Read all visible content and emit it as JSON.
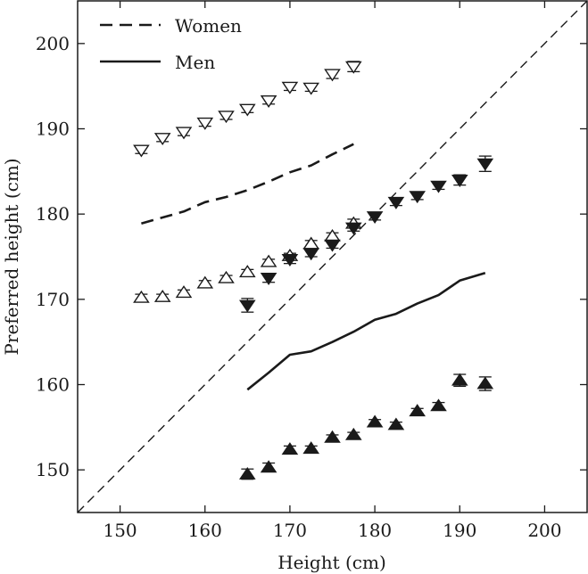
{
  "chart_data": {
    "type": "scatter",
    "title": "",
    "xlabel": "Height (cm)",
    "ylabel": "Preferred height (cm)",
    "xlim": [
      145,
      205
    ],
    "ylim": [
      145,
      205
    ],
    "xticks": [
      150,
      160,
      170,
      180,
      190,
      200
    ],
    "yticks": [
      150,
      160,
      170,
      180,
      190,
      200
    ],
    "grid": false,
    "legend_position": "top-left",
    "legend": [
      {
        "label": "Women",
        "style": "dashed"
      },
      {
        "label": "Men",
        "style": "solid"
      }
    ],
    "reference_line": {
      "name": "identity (y = x)",
      "style": "dashed",
      "from": [
        145,
        145
      ],
      "to": [
        205,
        205
      ]
    },
    "lines": [
      {
        "name": "Women",
        "style": "dashed",
        "x": [
          152.5,
          155,
          157.5,
          160,
          162.5,
          165,
          167.5,
          170,
          172.5,
          175,
          177.5
        ],
        "y": [
          178.9,
          179.6,
          180.3,
          181.4,
          182.0,
          182.8,
          183.8,
          184.9,
          185.7,
          187.0,
          188.2
        ]
      },
      {
        "name": "Men",
        "style": "solid",
        "x": [
          165,
          167.5,
          170,
          172.5,
          175,
          177.5,
          180,
          182.5,
          185,
          187.5,
          190,
          193
        ],
        "y": [
          159.4,
          161.4,
          163.5,
          163.9,
          165.0,
          166.2,
          167.6,
          168.3,
          169.5,
          170.5,
          172.2,
          173.1
        ]
      }
    ],
    "series": [
      {
        "name": "Women – preferred partner height",
        "marker": "open-triangle-down",
        "x": [
          152.5,
          155,
          157.5,
          160,
          162.5,
          165,
          167.5,
          170,
          172.5,
          175,
          177.5
        ],
        "y": [
          187.5,
          188.9,
          189.6,
          190.7,
          191.5,
          192.3,
          193.3,
          194.9,
          194.8,
          196.4,
          197.3
        ],
        "err": [
          0.4,
          0.4,
          0.4,
          0.4,
          0.4,
          0.4,
          0.4,
          0.4,
          0.4,
          0.5,
          0.6
        ]
      },
      {
        "name": "Women – preferred own height",
        "marker": "open-triangle-up",
        "x": [
          152.5,
          155,
          157.5,
          160,
          162.5,
          165,
          167.5,
          170,
          172.5,
          175,
          177.5
        ],
        "y": [
          170.2,
          170.3,
          170.8,
          171.9,
          172.5,
          173.2,
          174.4,
          175.1,
          176.5,
          177.4,
          178.9
        ],
        "err": [
          0.4,
          0.3,
          0.3,
          0.3,
          0.3,
          0.3,
          0.3,
          0.3,
          0.4,
          0.4,
          0.5
        ]
      },
      {
        "name": "Men – preferred own height",
        "marker": "filled-triangle-down",
        "x": [
          165,
          167.5,
          170,
          172.5,
          175,
          177.5,
          180,
          182.5,
          185,
          187.5,
          190,
          193
        ],
        "y": [
          169.3,
          172.5,
          174.7,
          175.4,
          176.4,
          178.4,
          179.7,
          181.4,
          182.1,
          183.3,
          184.0,
          185.9
        ],
        "err": [
          0.8,
          0.5,
          0.5,
          0.4,
          0.4,
          0.4,
          0.4,
          0.4,
          0.4,
          0.4,
          0.6,
          0.9
        ]
      },
      {
        "name": "Men – preferred partner height",
        "marker": "filled-triangle-up",
        "x": [
          165,
          167.5,
          170,
          172.5,
          175,
          177.5,
          180,
          182.5,
          185,
          187.5,
          190,
          193
        ],
        "y": [
          149.5,
          150.3,
          152.4,
          152.5,
          153.8,
          154.1,
          155.6,
          155.3,
          156.9,
          157.5,
          160.5,
          160.1
        ],
        "err": [
          0.6,
          0.5,
          0.4,
          0.3,
          0.3,
          0.3,
          0.3,
          0.3,
          0.3,
          0.4,
          0.7,
          0.8
        ]
      }
    ]
  }
}
